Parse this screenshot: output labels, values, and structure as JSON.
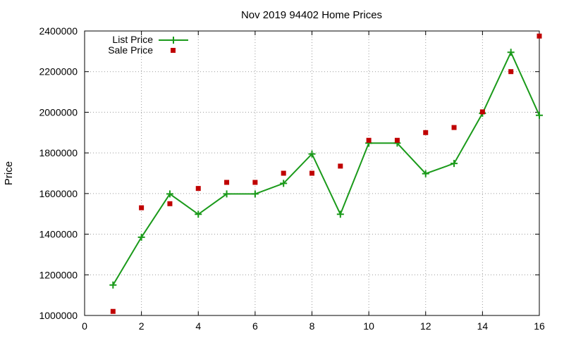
{
  "chart_data": {
    "type": "line",
    "title": "Nov 2019 94402 Home Prices",
    "xlabel": "",
    "ylabel": "Price",
    "xlim": [
      0,
      16
    ],
    "ylim": [
      1000000,
      2400000
    ],
    "xticks": [
      0,
      2,
      4,
      6,
      8,
      10,
      12,
      14,
      16
    ],
    "yticks": [
      1000000,
      1200000,
      1400000,
      1600000,
      1800000,
      2000000,
      2200000,
      2400000
    ],
    "grid": true,
    "legend_position": "top-left",
    "series": [
      {
        "name": "List Price",
        "style": "line-with-plus-markers",
        "color": "#1a9a1a",
        "x": [
          1,
          2,
          3,
          4,
          5,
          6,
          7,
          8,
          9,
          10,
          11,
          12,
          13,
          14,
          15,
          16
        ],
        "values": [
          1150000,
          1385000,
          1598000,
          1498000,
          1598000,
          1598000,
          1650000,
          1795000,
          1498000,
          1848000,
          1848000,
          1698000,
          1748000,
          1995000,
          2295000,
          1985000
        ]
      },
      {
        "name": "Sale Price",
        "style": "square-markers",
        "color": "#c00000",
        "x": [
          1,
          2,
          3,
          4,
          5,
          6,
          7,
          8,
          9,
          10,
          11,
          12,
          13,
          14,
          15,
          16
        ],
        "values": [
          1020000,
          1530000,
          1550000,
          1625000,
          1655000,
          1655000,
          1700000,
          1700000,
          1735000,
          1862000,
          1862000,
          1900000,
          1925000,
          2002000,
          2200000,
          2375000
        ]
      }
    ]
  }
}
